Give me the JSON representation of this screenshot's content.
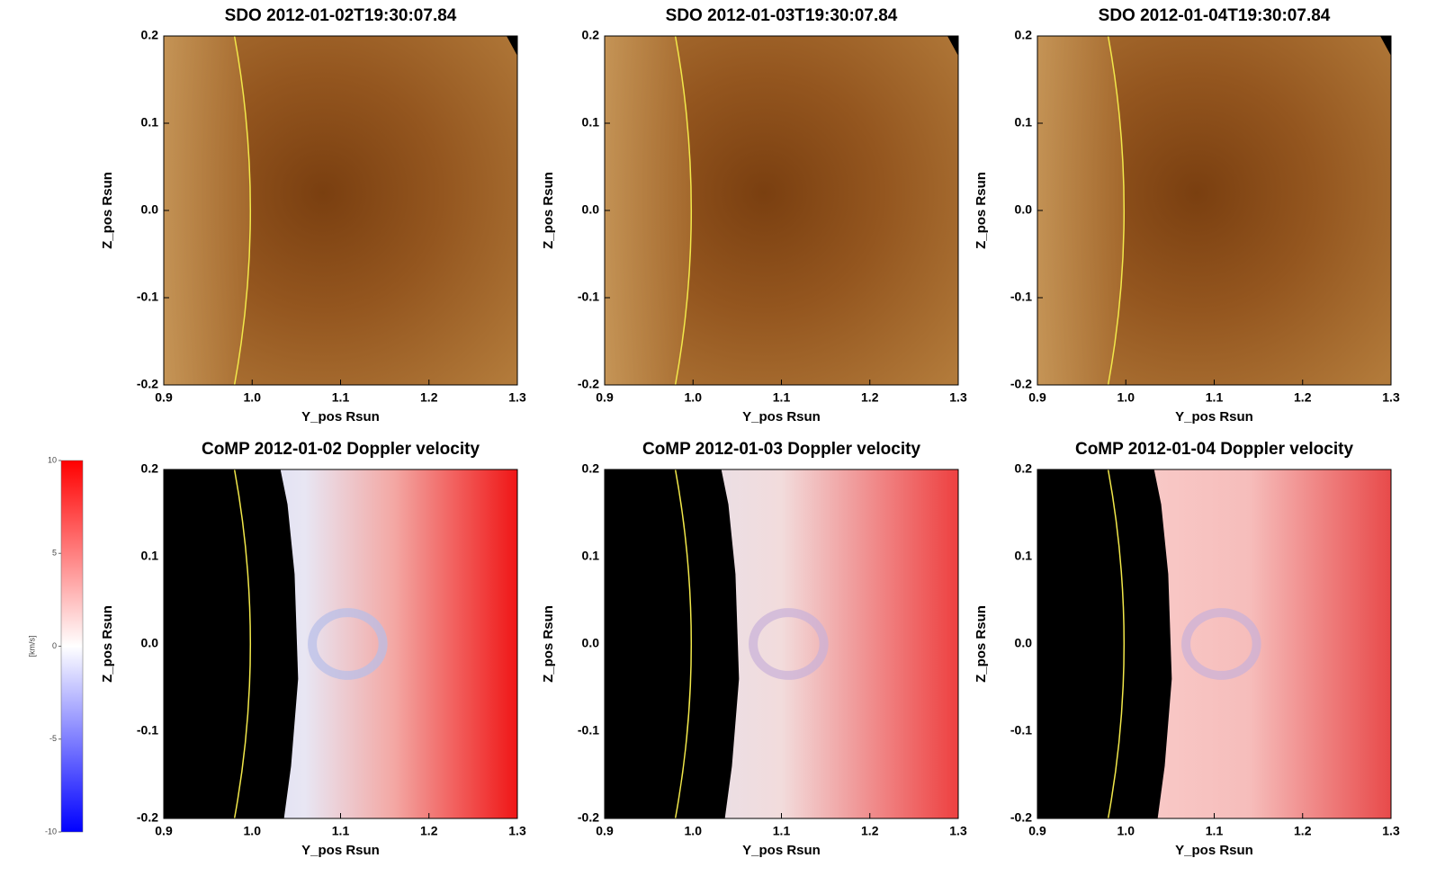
{
  "chart_data": [
    {
      "type": "image",
      "colormap": "sdo",
      "title": "SDO 2012-01-02T19:30:07.84",
      "xlabel": "Y_pos Rsun",
      "ylabel": "Z_pos Rsun",
      "xlim": [
        0.9,
        1.3
      ],
      "ylim": [
        -0.2,
        0.2
      ],
      "xticks": [
        0.9,
        {
          "value": 1,
          "label": "1.0"
        },
        1.1,
        1.2,
        1.3
      ],
      "yticks": [
        -0.2,
        -0.1,
        {
          "value": 0,
          "label": "0.0"
        },
        0.1,
        0.2
      ]
    },
    {
      "type": "image",
      "colormap": "sdo",
      "title": "SDO 2012-01-03T19:30:07.84",
      "xlabel": "Y_pos Rsun",
      "ylabel": "Z_pos Rsun",
      "xlim": [
        0.9,
        1.3
      ],
      "ylim": [
        -0.2,
        0.2
      ],
      "xticks": [
        0.9,
        {
          "value": 1,
          "label": "1.0"
        },
        1.1,
        1.2,
        1.3
      ],
      "yticks": [
        -0.2,
        -0.1,
        {
          "value": 0,
          "label": "0.0"
        },
        0.1,
        0.2
      ]
    },
    {
      "type": "image",
      "colormap": "sdo",
      "title": "SDO 2012-01-04T19:30:07.84",
      "xlabel": "Y_pos Rsun",
      "ylabel": "Z_pos Rsun",
      "xlim": [
        0.9,
        1.3
      ],
      "ylim": [
        -0.2,
        0.2
      ],
      "xticks": [
        0.9,
        {
          "value": 1,
          "label": "1.0"
        },
        1.1,
        1.2,
        1.3
      ],
      "yticks": [
        -0.2,
        -0.1,
        {
          "value": 0,
          "label": "0.0"
        },
        0.1,
        0.2
      ]
    },
    {
      "type": "image",
      "colormap": "doppler",
      "title": "CoMP 2012-01-02 Doppler velocity",
      "xlabel": "Y_pos Rsun",
      "ylabel": "Z_pos Rsun",
      "xlim": [
        0.9,
        1.3
      ],
      "ylim": [
        -0.2,
        0.2
      ],
      "xticks": [
        0.9,
        {
          "value": 1,
          "label": "1.0"
        },
        1.1,
        1.2,
        1.3
      ],
      "yticks": [
        -0.2,
        -0.1,
        {
          "value": 0,
          "label": "0.0"
        },
        0.1,
        0.2
      ]
    },
    {
      "type": "image",
      "colormap": "doppler",
      "title": "CoMP 2012-01-03 Doppler velocity",
      "xlabel": "Y_pos Rsun",
      "ylabel": "Z_pos Rsun",
      "xlim": [
        0.9,
        1.3
      ],
      "ylim": [
        -0.2,
        0.2
      ],
      "xticks": [
        0.9,
        {
          "value": 1,
          "label": "1.0"
        },
        1.1,
        1.2,
        1.3
      ],
      "yticks": [
        -0.2,
        -0.1,
        {
          "value": 0,
          "label": "0.0"
        },
        0.1,
        0.2
      ]
    },
    {
      "type": "image",
      "colormap": "doppler",
      "title": "CoMP 2012-01-04 Doppler velocity",
      "xlabel": "Y_pos Rsun",
      "ylabel": "Z_pos Rsun",
      "xlim": [
        0.9,
        1.3
      ],
      "ylim": [
        -0.2,
        0.2
      ],
      "xticks": [
        0.9,
        {
          "value": 1,
          "label": "1.0"
        },
        1.1,
        1.2,
        1.3
      ],
      "yticks": [
        -0.2,
        -0.1,
        {
          "value": 0,
          "label": "0.0"
        },
        0.1,
        0.2
      ]
    },
    {
      "type": "colorbar",
      "ylabel": "[km/s]",
      "ylim": [
        -10,
        10
      ],
      "yticks": [
        -10,
        -5,
        0,
        5,
        10
      ],
      "colors": [
        "#0000ff",
        "#ffffff",
        "#ff0000"
      ]
    }
  ]
}
